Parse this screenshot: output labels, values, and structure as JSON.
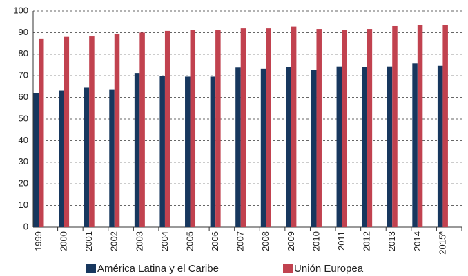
{
  "chart_data": {
    "type": "bar",
    "categories": [
      "1999",
      "2000",
      "2001",
      "2002",
      "2003",
      "2004",
      "2005",
      "2006",
      "2007",
      "2008",
      "2009",
      "2010",
      "2011",
      "2012",
      "2013",
      "2014",
      "2015ª"
    ],
    "series": [
      {
        "name": "América Latina y el Caribe",
        "color": "#17375e",
        "values": [
          62.1,
          63.2,
          64.5,
          63.5,
          71.3,
          70,
          69.6,
          69.6,
          73.8,
          73.3,
          74,
          72.7,
          74.3,
          74,
          74.3,
          75.7,
          74.6
        ]
      },
      {
        "name": "Unión Europea",
        "color": "#c1424f",
        "values": [
          87.3,
          88,
          88.2,
          89.5,
          90,
          90.8,
          91.4,
          91.4,
          92,
          92,
          92.8,
          91.7,
          91.4,
          91.7,
          93,
          93.6,
          93.6
        ]
      }
    ],
    "ylim": [
      0,
      100
    ],
    "yticks": [
      0,
      10,
      20,
      30,
      40,
      50,
      60,
      70,
      80,
      90,
      100
    ],
    "grid": true
  }
}
